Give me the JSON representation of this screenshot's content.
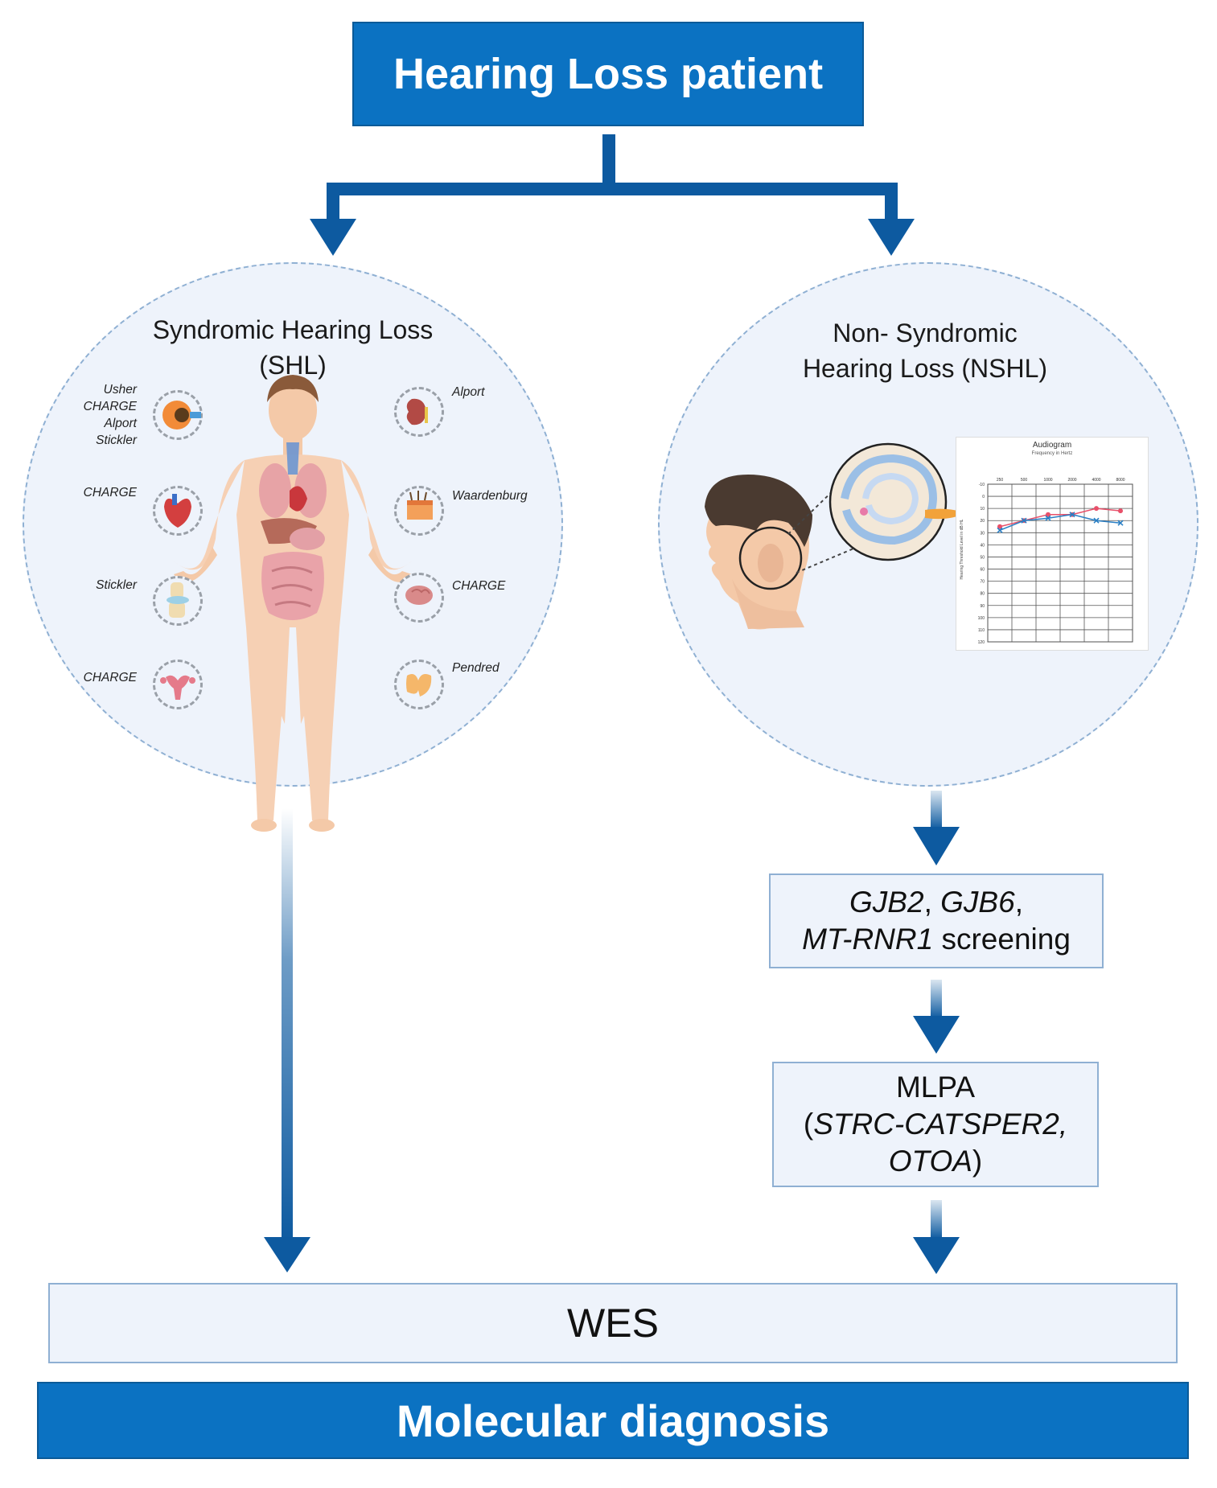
{
  "top": {
    "title": "Hearing Loss patient"
  },
  "shl": {
    "title_line1": "Syndromic Hearing Loss",
    "title_line2": "(SHL)",
    "left_labels": [
      [
        "Usher",
        "CHARGE",
        "Alport",
        "Stickler"
      ],
      [
        "CHARGE"
      ],
      [
        "Stickler"
      ],
      [
        "CHARGE"
      ]
    ],
    "right_labels": [
      "Alport",
      "Waardenburg",
      "CHARGE",
      "Pendred"
    ]
  },
  "nshl": {
    "title_line1": "Non- Syndromic",
    "title_line2": "Hearing Loss (NSHL)",
    "audiogram": {
      "title": "Audiogram",
      "subtitle": "Frequency in Hertz",
      "ylabel": "Hearing Threshold Level in dB HL",
      "freqs": [
        "250",
        "500",
        "1000",
        "2000",
        "4000",
        "8000"
      ],
      "levels": [
        "-10",
        "0",
        "10",
        "20",
        "30",
        "40",
        "50",
        "60",
        "70",
        "80",
        "90",
        "100",
        "110",
        "120"
      ]
    }
  },
  "chart_data": {
    "type": "line",
    "title": "Audiogram",
    "xlabel": "Frequency in Hertz",
    "ylabel": "Hearing Threshold Level in dB HL",
    "categories": [
      "250",
      "500",
      "1000",
      "2000",
      "4000",
      "8000"
    ],
    "ylim": [
      -10,
      120
    ],
    "y_inverted": true,
    "grid": true,
    "series": [
      {
        "color": "#e8506a",
        "marker": "circle",
        "values": [
          25,
          20,
          15,
          15,
          10,
          12
        ]
      },
      {
        "color": "#2a7fc4",
        "marker": "x",
        "values": [
          28,
          20,
          18,
          15,
          20,
          22
        ]
      }
    ]
  },
  "steps": {
    "screen_line1_a": "GJB2",
    "screen_line1_sep1": ", ",
    "screen_line1_b": "GJB6",
    "screen_line1_sep2": ",",
    "screen_line2_a": "MT-RNR1",
    "screen_line2_b": " screening",
    "mlpa_line1": "MLPA",
    "mlpa_line2_open": "(",
    "mlpa_line2_it": "STRC-CATSPER2,",
    "mlpa_line3_it": "OTOA",
    "mlpa_line3_close": ")"
  },
  "wes": {
    "label": "WES"
  },
  "bottom": {
    "title": "Molecular diagnosis"
  },
  "colors": {
    "primary": "#0b72c2",
    "arrow": "#0d5aa0",
    "panel": "#eef3fb",
    "border": "#8fb0d3"
  }
}
